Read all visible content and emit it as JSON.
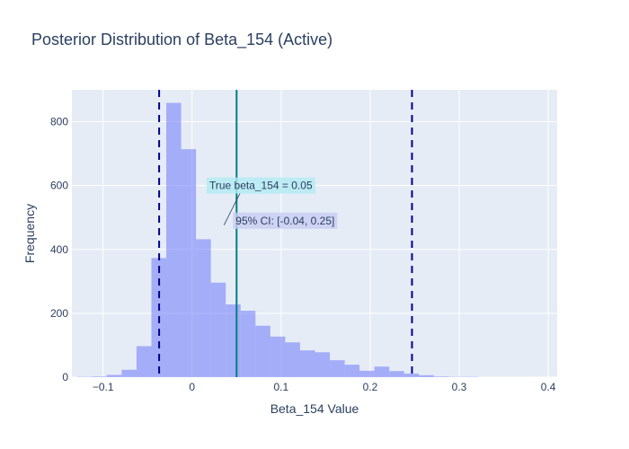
{
  "chart_data": {
    "type": "bar",
    "title": "Posterior Distribution of Beta_154 (Active)",
    "xlabel": "Beta_154 Value",
    "ylabel": "Frequency",
    "xlim": [
      -0.135,
      0.41
    ],
    "ylim": [
      0,
      900
    ],
    "grid": true,
    "bin_width": 0.0167,
    "bins": [
      {
        "x0": -0.1292,
        "count": 1
      },
      {
        "x0": -0.1125,
        "count": 2
      },
      {
        "x0": -0.0958,
        "count": 7
      },
      {
        "x0": -0.0791,
        "count": 23
      },
      {
        "x0": -0.0624,
        "count": 97
      },
      {
        "x0": -0.0457,
        "count": 373
      },
      {
        "x0": -0.029,
        "count": 859
      },
      {
        "x0": -0.0123,
        "count": 714
      },
      {
        "x0": 0.0044,
        "count": 432
      },
      {
        "x0": 0.0211,
        "count": 296
      },
      {
        "x0": 0.0378,
        "count": 228
      },
      {
        "x0": 0.0545,
        "count": 208
      },
      {
        "x0": 0.0712,
        "count": 161
      },
      {
        "x0": 0.0879,
        "count": 127
      },
      {
        "x0": 0.1046,
        "count": 109
      },
      {
        "x0": 0.1213,
        "count": 84
      },
      {
        "x0": 0.138,
        "count": 78
      },
      {
        "x0": 0.1547,
        "count": 53
      },
      {
        "x0": 0.1714,
        "count": 39
      },
      {
        "x0": 0.1881,
        "count": 20
      },
      {
        "x0": 0.2048,
        "count": 33
      },
      {
        "x0": 0.2215,
        "count": 19
      },
      {
        "x0": 0.2382,
        "count": 11
      },
      {
        "x0": 0.2549,
        "count": 6
      },
      {
        "x0": 0.2716,
        "count": 2
      },
      {
        "x0": 0.2883,
        "count": 1
      },
      {
        "x0": 0.305,
        "count": 1
      }
    ],
    "x_ticks": [
      {
        "value": -0.1,
        "label": "−0.1"
      },
      {
        "value": 0,
        "label": "0"
      },
      {
        "value": 0.1,
        "label": "0.1"
      },
      {
        "value": 0.2,
        "label": "0.2"
      },
      {
        "value": 0.3,
        "label": "0.3"
      },
      {
        "value": 0.4,
        "label": "0.4"
      }
    ],
    "y_ticks": [
      {
        "value": 0,
        "label": "0"
      },
      {
        "value": 200,
        "label": "200"
      },
      {
        "value": 400,
        "label": "400"
      },
      {
        "value": 600,
        "label": "600"
      },
      {
        "value": 800,
        "label": "800"
      }
    ],
    "vlines": [
      {
        "name": "ci-lower",
        "x": -0.037,
        "style": "dash",
        "color": "#00008b"
      },
      {
        "name": "ci-upper",
        "x": 0.247,
        "style": "dash",
        "color": "#00008b"
      },
      {
        "name": "true-value",
        "x": 0.05,
        "style": "solid",
        "color": "#008080"
      }
    ],
    "annotations": [
      {
        "name": "true-value-annotation",
        "text": "True beta_154 = 0.05",
        "x": 0.05,
        "y": 600,
        "bg": "#b2ebf2"
      },
      {
        "name": "ci-annotation",
        "text": "95% CI: [-0.04, 0.25]",
        "x": 0.05,
        "y": 490,
        "bg": "#c9cdf3"
      }
    ],
    "colors": {
      "bar": "#636efa",
      "plot_bg": "#e5ecf6",
      "grid": "#ffffff",
      "text": "#2a3f5f"
    }
  }
}
